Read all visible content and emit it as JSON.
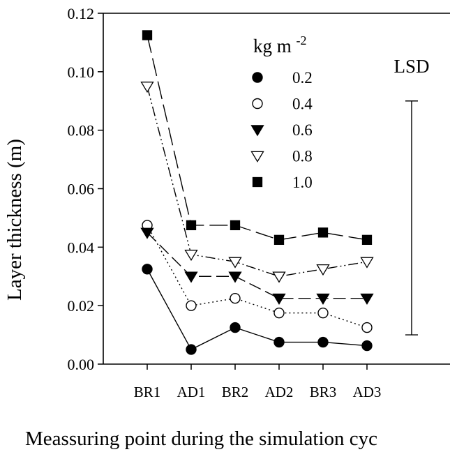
{
  "chart_data": {
    "type": "line",
    "title": "",
    "xlabel": "Meassuring point during the simulation cyc",
    "ylabel": "Layer thickness (m)",
    "ylim": [
      0,
      0.12
    ],
    "yticks": [
      "0.00",
      "0.02",
      "0.04",
      "0.06",
      "0.08",
      "0.10",
      "0.12"
    ],
    "ytick_values": [
      0,
      0.02,
      0.04,
      0.06,
      0.08,
      0.1,
      0.12
    ],
    "categories": [
      "BR1",
      "AD1",
      "BR2",
      "AD2",
      "BR3",
      "AD3"
    ],
    "grid": false,
    "legend": {
      "title_base": "kg m",
      "title_exp": "-2",
      "position": "top-center"
    },
    "series": [
      {
        "name": "0.2",
        "marker": "filled-circle",
        "dash": "solid",
        "values": [
          0.0325,
          0.005,
          0.0125,
          0.0075,
          0.0075,
          0.0063
        ]
      },
      {
        "name": "0.4",
        "marker": "open-circle",
        "dash": "dotted",
        "values": [
          0.0475,
          0.02,
          0.0225,
          0.0175,
          0.0175,
          0.0125
        ]
      },
      {
        "name": "0.6",
        "marker": "filled-triangle-down",
        "dash": "dashed",
        "values": [
          0.045,
          0.03,
          0.03,
          0.0225,
          0.0225,
          0.0225
        ]
      },
      {
        "name": "0.8",
        "marker": "open-triangle-down",
        "dash": "dash-dot-dot",
        "values": [
          0.095,
          0.0375,
          0.035,
          0.03,
          0.0325,
          0.035
        ]
      },
      {
        "name": "1.0",
        "marker": "filled-square",
        "dash": "long-dash",
        "values": [
          0.1125,
          0.0475,
          0.0475,
          0.0425,
          0.045,
          0.0425
        ]
      }
    ],
    "annotation": {
      "label": "LSD",
      "range": [
        0.01,
        0.09
      ]
    }
  }
}
